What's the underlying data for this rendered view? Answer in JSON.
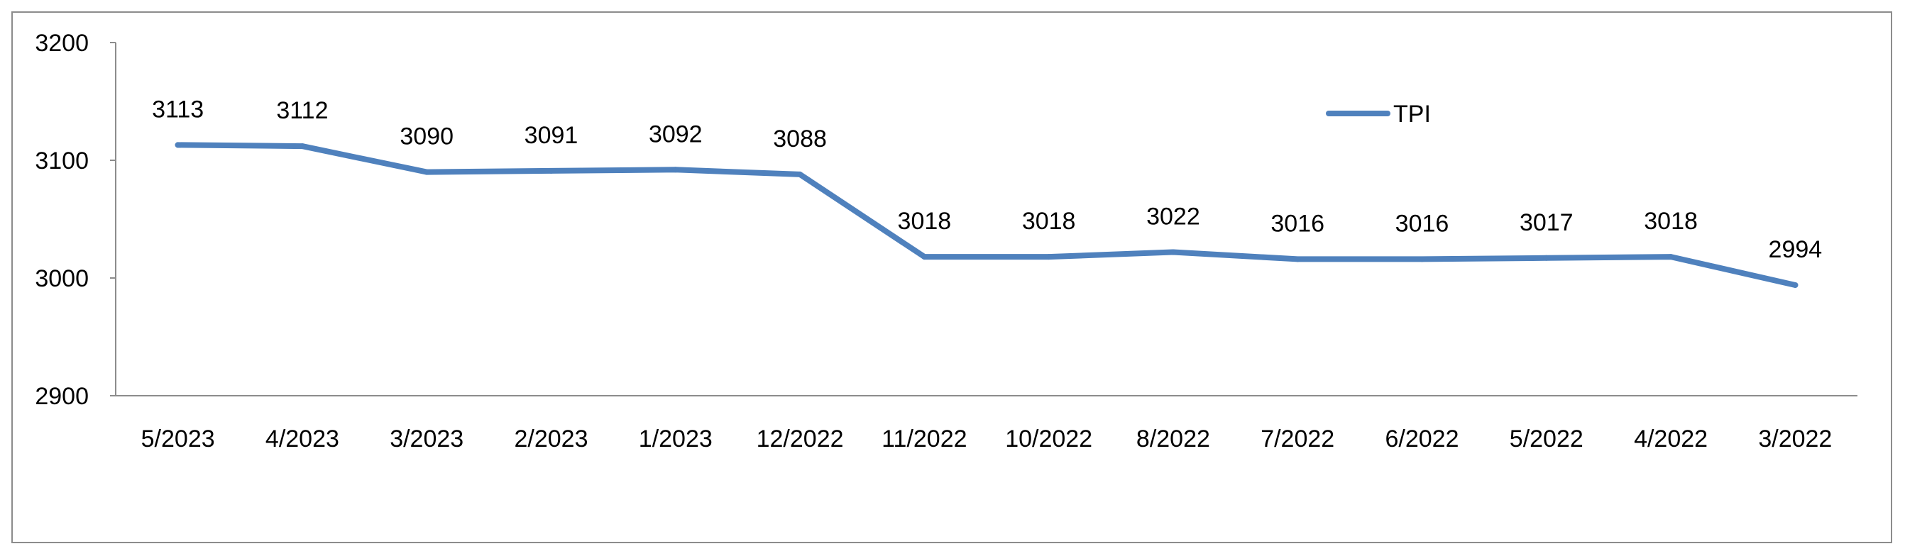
{
  "chart_data": {
    "type": "line",
    "categories": [
      "5/2023",
      "4/2023",
      "3/2023",
      "2/2023",
      "1/2023",
      "12/2022",
      "11/2022",
      "10/2022",
      "8/2022",
      "7/2022",
      "6/2022",
      "5/2022",
      "4/2022",
      "3/2022"
    ],
    "series": [
      {
        "name": "TPI",
        "values": [
          3113,
          3112,
          3090,
          3091,
          3092,
          3088,
          3018,
          3018,
          3022,
          3016,
          3016,
          3017,
          3018,
          2994
        ],
        "color": "#4f81bd"
      }
    ],
    "y_ticks": [
      "2900",
      "3000",
      "3100",
      "3200"
    ],
    "ylim": [
      2900,
      3200
    ],
    "legend_position": "top-right",
    "grid": false,
    "data_labels": true
  }
}
